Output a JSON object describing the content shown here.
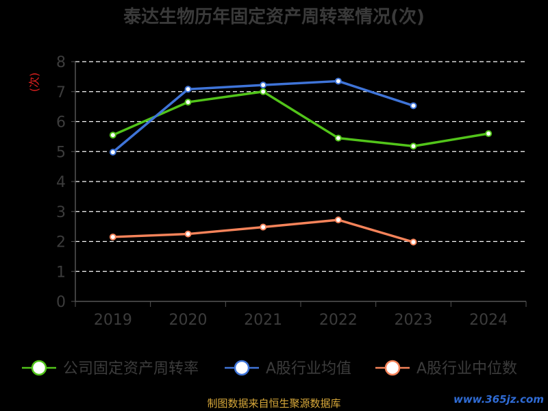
{
  "chart_data": {
    "type": "line",
    "title": "泰达生物历年固定资产周转率情况(次)",
    "ylabel": "(次)",
    "xlabel": "",
    "categories": [
      "2019",
      "2020",
      "2021",
      "2022",
      "2023",
      "2024"
    ],
    "ylim": [
      0,
      8
    ],
    "yticks": [
      0,
      1,
      2,
      3,
      4,
      5,
      6,
      7,
      8
    ],
    "grid": true,
    "legend_position": "bottom",
    "series": [
      {
        "name": "公司固定资产周转率",
        "color": "#52c41a",
        "values": [
          5.55,
          6.65,
          7.0,
          5.45,
          5.18,
          5.6
        ]
      },
      {
        "name": "A股行业均值",
        "color": "#3f74d8",
        "values": [
          4.98,
          7.08,
          7.22,
          7.35,
          6.53,
          null
        ]
      },
      {
        "name": "A股行业中位数",
        "color": "#f5835a",
        "values": [
          2.15,
          2.25,
          2.48,
          2.72,
          1.98,
          null
        ]
      }
    ]
  },
  "footer": {
    "source": "制图数据来自恒生聚源数据库",
    "watermark": "www.365jz.com"
  }
}
